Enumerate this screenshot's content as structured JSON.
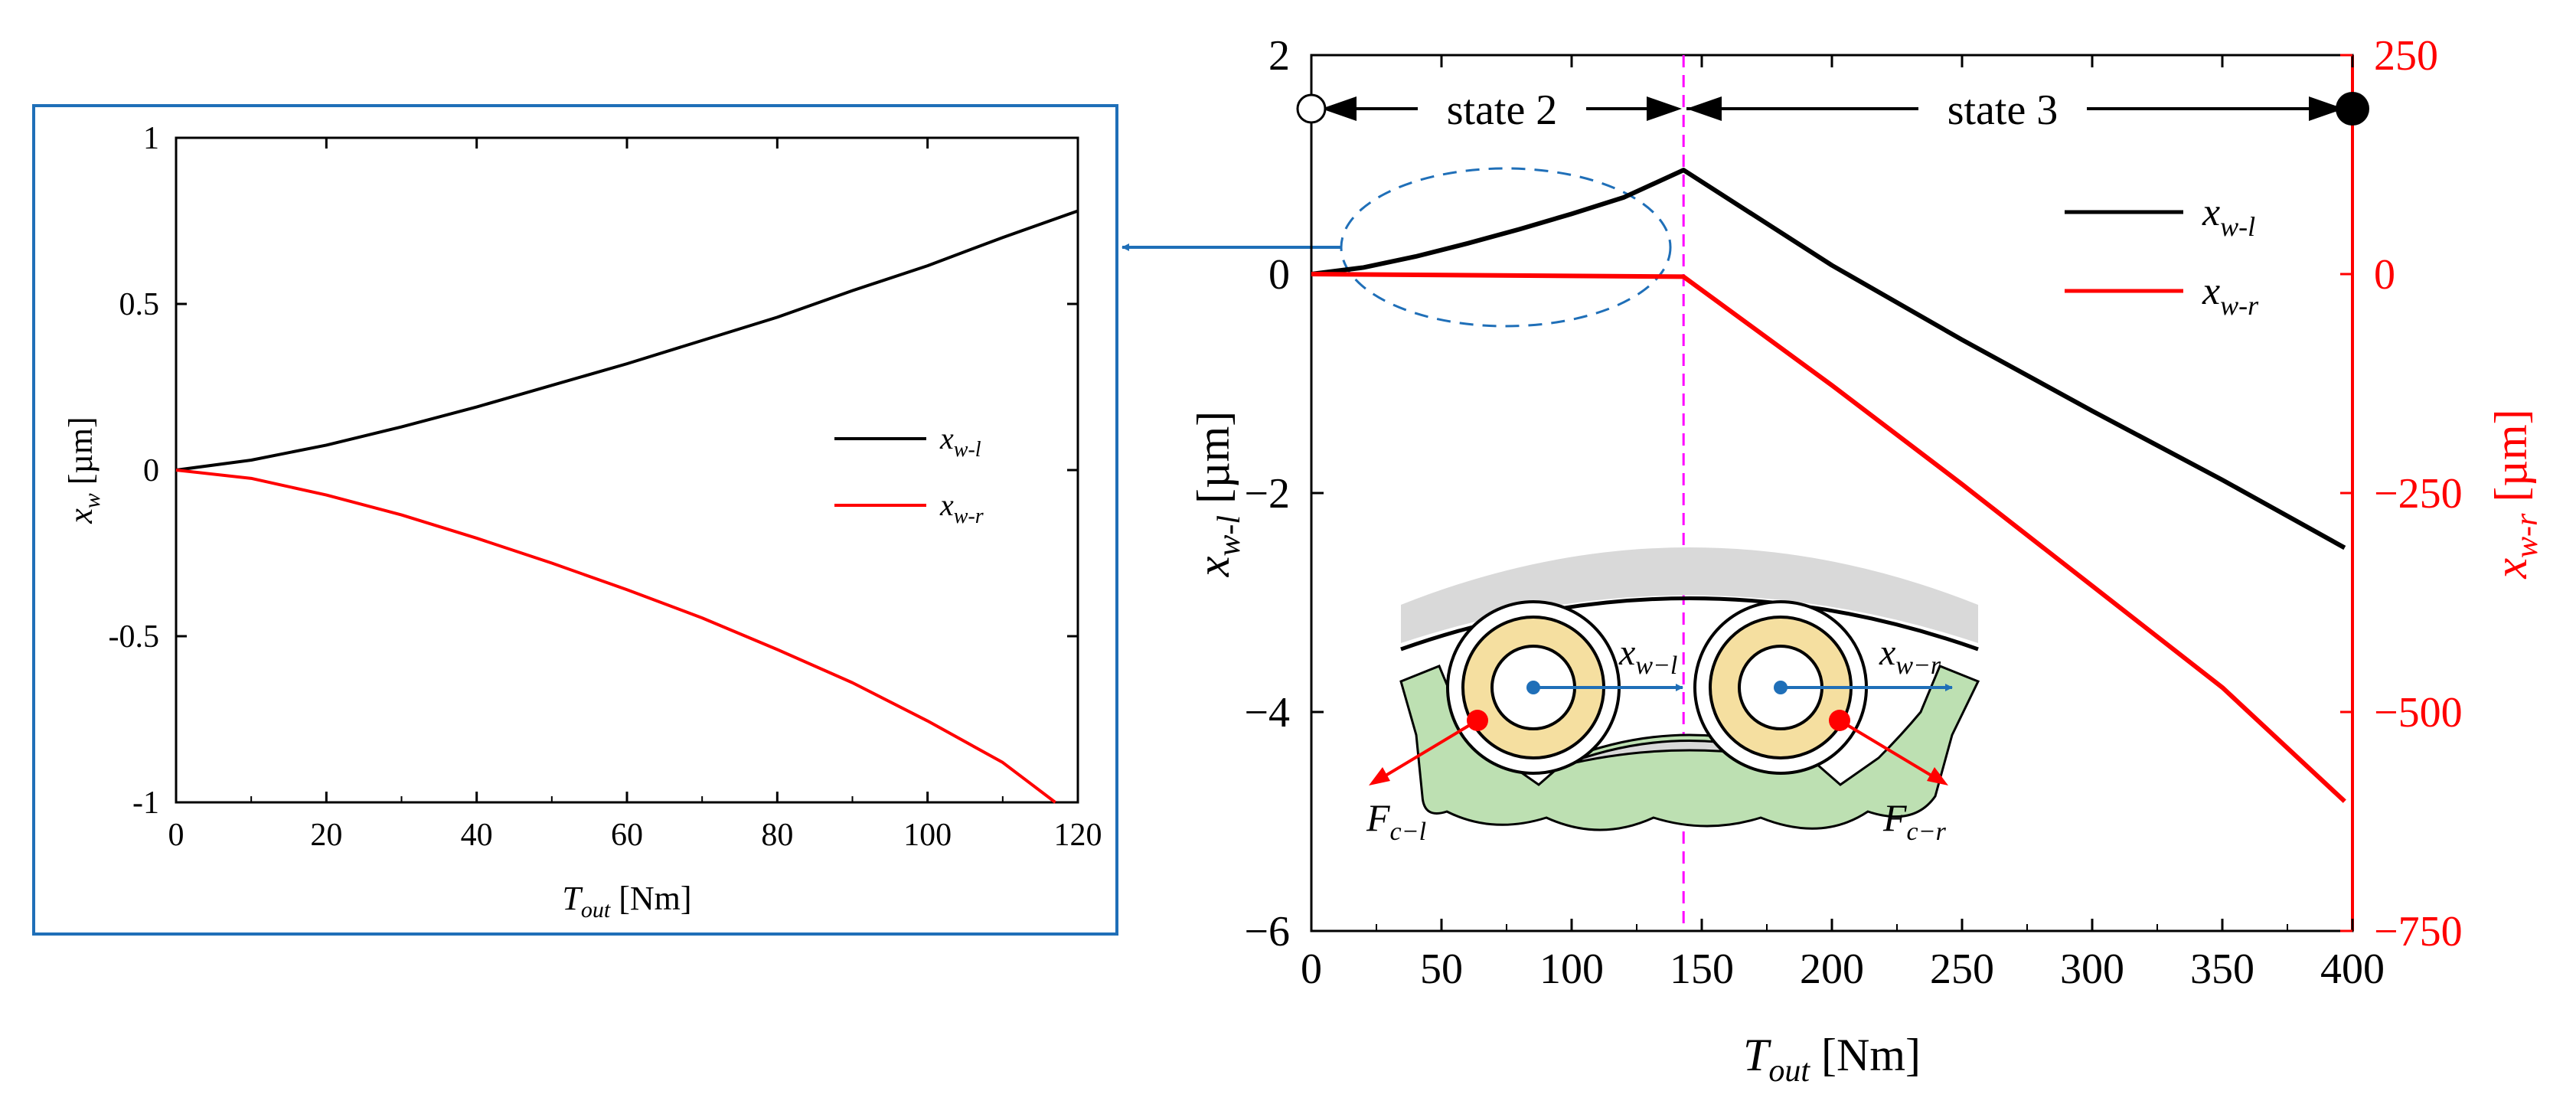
{
  "colors": {
    "black_series": "#000000",
    "red_series": "#ff0000",
    "frame_blue": "#1f6fb8",
    "state_marker": "#ff00ff",
    "roller_fill": "#f5dfa0",
    "ring_fill": "#bde0b2",
    "shell_fill": "#d9d9d9"
  },
  "chart_data": [
    {
      "id": "inset",
      "type": "line",
      "xlabel": {
        "main": "T",
        "sub": "out",
        "unit": " [Nm]"
      },
      "ylabel": {
        "main": "x",
        "sub": "w",
        "unit": " [µm]"
      },
      "xlim": [
        0,
        120
      ],
      "ylim": [
        -1,
        1
      ],
      "x_ticks": [
        "0",
        "20",
        "40",
        "60",
        "80",
        "100",
        "120"
      ],
      "y_ticks": [
        "1",
        "0.5",
        "0",
        "-0.5",
        "-1"
      ],
      "legend": [
        {
          "main": "x",
          "sub": "w-l",
          "color": "#000000"
        },
        {
          "main": "x",
          "sub": "w-r",
          "color": "#ff0000"
        }
      ],
      "series": [
        {
          "name": "x_w-l",
          "color": "#000000",
          "x": [
            0,
            10,
            20,
            30,
            40,
            50,
            60,
            70,
            80,
            90,
            100,
            110,
            120
          ],
          "y": [
            0,
            0.03,
            0.075,
            0.13,
            0.19,
            0.255,
            0.32,
            0.39,
            0.46,
            0.54,
            0.615,
            0.7,
            0.78
          ]
        },
        {
          "name": "x_w-r",
          "color": "#ff0000",
          "x": [
            0,
            10,
            20,
            30,
            40,
            50,
            60,
            70,
            80,
            90,
            100,
            110,
            117
          ],
          "y": [
            0,
            -0.025,
            -0.075,
            -0.135,
            -0.205,
            -0.28,
            -0.36,
            -0.445,
            -0.54,
            -0.64,
            -0.755,
            -0.88,
            -1.0
          ]
        }
      ]
    },
    {
      "id": "main",
      "type": "line",
      "xlabel": {
        "main": "T",
        "sub": "out",
        "unit": " [Nm]"
      },
      "ylabel_left": {
        "main": "x",
        "sub": "w-l",
        "unit": " [µm]"
      },
      "ylabel_right": {
        "main": "x",
        "sub": "w-r",
        "unit": " [µm]"
      },
      "xlim": [
        0,
        400
      ],
      "ylim_left": [
        -6,
        2
      ],
      "ylim_right": [
        -750,
        250
      ],
      "x_ticks": [
        "0",
        "50",
        "100",
        "150",
        "200",
        "250",
        "300",
        "350",
        "400"
      ],
      "y_ticks_left": [
        "2",
        "0",
        "−2",
        "−4",
        "−6"
      ],
      "y_ticks_right": [
        "250",
        "0",
        "−250",
        "−500",
        "−750"
      ],
      "state_boundary_x": 143,
      "states": [
        "state 2",
        "state 3"
      ],
      "legend": [
        {
          "main": "x",
          "sub": "w-l",
          "color": "#000000"
        },
        {
          "main": "x",
          "sub": "w-r",
          "color": "#ff0000"
        }
      ],
      "series": [
        {
          "name": "x_w-l",
          "axis": "left",
          "color": "#000000",
          "x": [
            0,
            20,
            40,
            60,
            80,
            100,
            120,
            143,
            200,
            250,
            300,
            350,
            397
          ],
          "y": [
            0,
            0.06,
            0.16,
            0.28,
            0.41,
            0.55,
            0.7,
            0.95,
            0.08,
            -0.6,
            -1.25,
            -1.88,
            -2.5
          ]
        },
        {
          "name": "x_w-r",
          "axis": "right",
          "color": "#ff0000",
          "x": [
            0,
            143,
            200,
            250,
            300,
            350,
            397
          ],
          "y": [
            0,
            -3,
            -127,
            -240,
            -356,
            -472,
            -602
          ]
        }
      ],
      "diagram": {
        "force_left": {
          "main": "F",
          "sub": "c−l"
        },
        "force_right": {
          "main": "F",
          "sub": "c−r"
        },
        "disp_left": {
          "main": "x",
          "sub": "w−l"
        },
        "disp_right": {
          "main": "x",
          "sub": "w−r"
        }
      }
    }
  ]
}
